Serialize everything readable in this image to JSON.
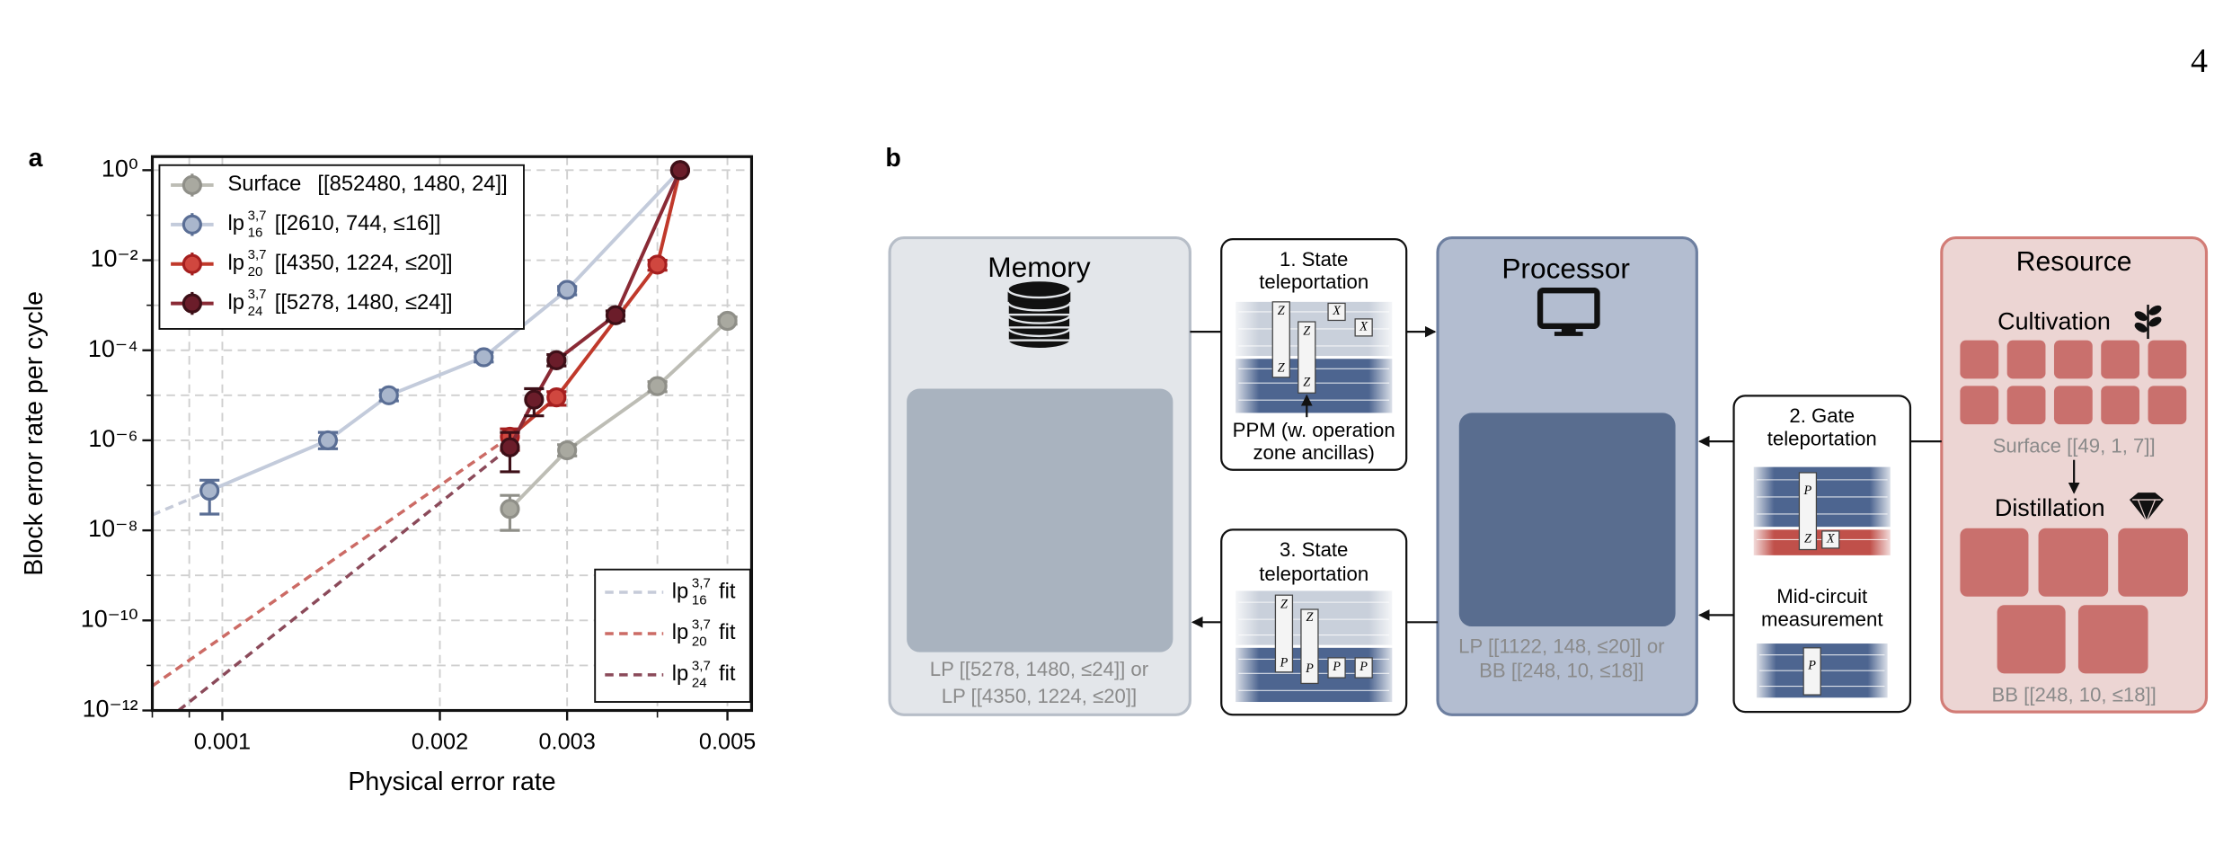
{
  "page_number": "4",
  "chart_data": {
    "type": "line",
    "panel_label": "a",
    "xlabel": "Physical error rate",
    "ylabel": "Block error rate per cycle",
    "xscale": "log",
    "yscale": "log",
    "xlim": [
      0.0008,
      0.0054
    ],
    "xticks": [
      0.001,
      0.002,
      0.003,
      0.005
    ],
    "xminor": [
      0.0008,
      0.0009,
      0.004
    ],
    "ylim": [
      1e-12,
      2
    ],
    "yticks": [
      {
        "value": 1,
        "label": "10⁰"
      },
      {
        "value": 0.01,
        "label": "10⁻²"
      },
      {
        "value": 0.0001,
        "label": "10⁻⁴"
      },
      {
        "value": 1e-06,
        "label": "10⁻⁶"
      },
      {
        "value": 1e-08,
        "label": "10⁻⁸"
      },
      {
        "value": 1e-10,
        "label": "10⁻¹⁰"
      },
      {
        "value": 1e-12,
        "label": "10⁻¹²"
      }
    ],
    "yminor": [
      0.1,
      0.001,
      1e-05,
      1e-07,
      1e-09,
      1e-11
    ],
    "grid": true,
    "series": [
      {
        "name": "Surface",
        "code": "[[852480, 1480, 24]]",
        "color": "#bdbdb5",
        "marker_color": "#a9a9a0",
        "marker_edge": "#8f8f88",
        "x": [
          0.0025,
          0.003,
          0.004,
          0.005
        ],
        "values": [
          3e-08,
          6e-07,
          1.6e-05,
          0.00045
        ],
        "ylow": [
          1e-08,
          4.5e-07,
          1.2e-05,
          0.00038
        ],
        "yhigh": [
          6e-08,
          8e-07,
          2e-05,
          0.00055
        ]
      },
      {
        "name": "lp",
        "name_sup": "3,7",
        "name_sub": "16",
        "code": "[[2610, 744, ≤16]]",
        "color": "#c3cbdb",
        "marker_color": "#a9b6cc",
        "marker_edge": "#5a6e95",
        "x": [
          0.00096,
          0.0014,
          0.0017,
          0.0023,
          0.003,
          0.0043
        ],
        "values": [
          7.6e-08,
          1e-06,
          1e-05,
          7e-05,
          0.0022,
          1
        ],
        "ylow": [
          2.3e-08,
          6.5e-07,
          7.5e-06,
          5.5e-05,
          0.0017,
          null
        ],
        "yhigh": [
          1.3e-07,
          1.5e-06,
          1.3e-05,
          9e-05,
          0.0026,
          null
        ]
      },
      {
        "name": "lp",
        "name_sup": "3,7",
        "name_sub": "20",
        "code": "[[4350, 1224, ≤20]]",
        "color": "#c0392b",
        "marker_color": "#d0473f",
        "marker_edge": "#a51f1f",
        "x": [
          0.0025,
          0.0029,
          0.004,
          0.0043
        ],
        "values": [
          1.2e-06,
          9e-06,
          0.008,
          1
        ],
        "ylow": [
          6e-07,
          6e-06,
          0.006,
          null
        ],
        "yhigh": [
          1.8e-06,
          1.2e-05,
          0.01,
          null
        ]
      },
      {
        "name": "lp",
        "name_sup": "3,7",
        "name_sub": "24",
        "code": "[[5278, 1480, ≤24]]",
        "color": "#8a2a35",
        "marker_color": "#6b1d2a",
        "marker_edge": "#3d0f17",
        "x": [
          0.0025,
          0.0027,
          0.0029,
          0.0035,
          0.0043
        ],
        "values": [
          7e-07,
          8e-06,
          6e-05,
          0.0006,
          1
        ],
        "ylow": [
          2e-07,
          3.5e-06,
          4.5e-05,
          0.00045,
          null
        ],
        "yhigh": [
          1.5e-06,
          1.4e-05,
          8e-05,
          0.00075,
          null
        ]
      }
    ],
    "fits": [
      {
        "name": "lp",
        "name_sup": "3,7",
        "name_sub": "16",
        "suffix": "fit",
        "color": "#c6cbd9",
        "x": [
          0.0008,
          0.0014
        ],
        "values": [
          2.2e-08,
          1e-06
        ]
      },
      {
        "name": "lp",
        "name_sup": "3,7",
        "name_sub": "20",
        "suffix": "fit",
        "color": "#cc6b65",
        "x": [
          0.0008,
          0.0025
        ],
        "values": [
          3.5e-12,
          1.2e-06
        ]
      },
      {
        "name": "lp",
        "name_sup": "3,7",
        "name_sub": "24",
        "suffix": "fit",
        "color": "#8b4a5a",
        "x": [
          0.00087,
          0.0025
        ],
        "values": [
          1e-12,
          7e-07
        ]
      }
    ]
  },
  "diagram": {
    "panel_label": "b",
    "memory": {
      "title": "Memory",
      "codes": [
        "LP [[5278, 1480, ≤24]] or",
        "LP [[4350, 1224, ≤20]]"
      ]
    },
    "step1": {
      "title": [
        "1. State",
        "teleportation"
      ],
      "gates": [
        "Z",
        "Z",
        "Z",
        "Z",
        "X",
        "X"
      ],
      "caption": [
        "PPM (w. operation",
        "zone ancillas)"
      ]
    },
    "processor": {
      "title": "Processor",
      "codes": [
        "LP [[1122, 148, ≤20]] or",
        "BB [[248, 10, ≤18]]"
      ]
    },
    "step3": {
      "title": [
        "3. State",
        "teleportation"
      ],
      "gates": [
        "Z",
        "P",
        "Z",
        "P",
        "P",
        "P"
      ]
    },
    "step2": {
      "title": [
        "2. Gate",
        "teleportation"
      ],
      "gates": [
        "P",
        "Z",
        "X"
      ],
      "caption": [
        "Mid-circuit",
        "measurement"
      ],
      "gates2": [
        "P"
      ]
    },
    "resource": {
      "title": "Resource",
      "cultivation": "Cultivation",
      "cultivation_code": "Surface [[49, 1, 7]]",
      "distillation": "Distillation",
      "distillation_code": "BB [[248, 10, ≤18]]"
    }
  }
}
